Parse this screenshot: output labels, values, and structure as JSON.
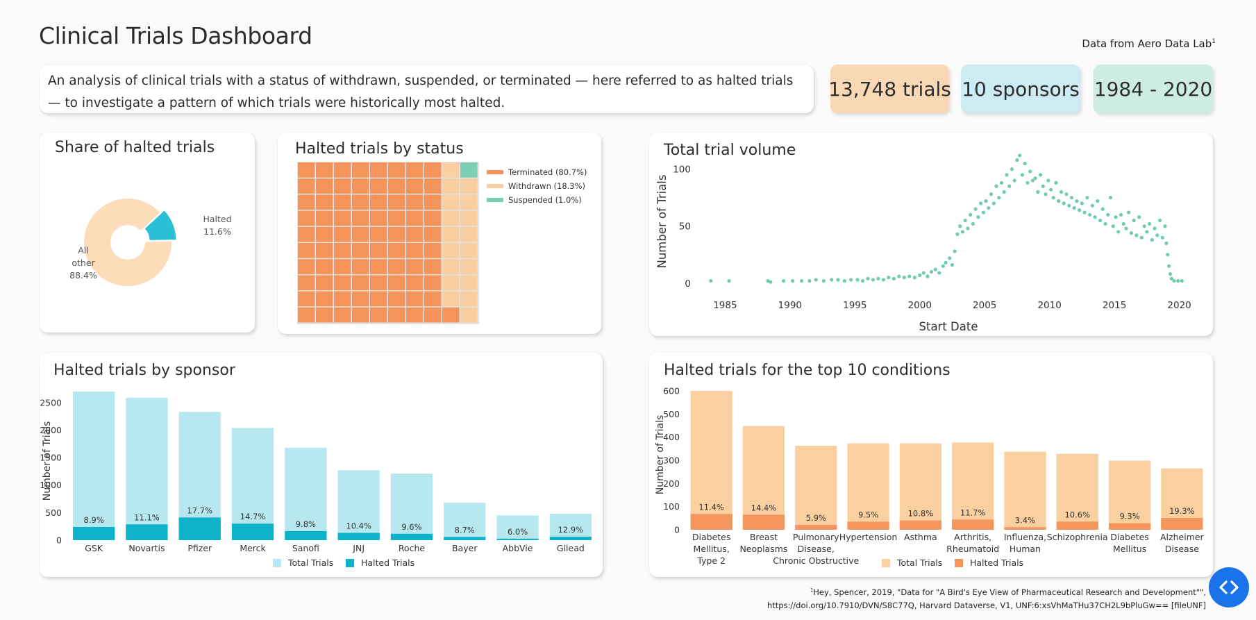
{
  "header": {
    "title": "Clinical Trials Dashboard",
    "source_text": "Data from Aero Data Lab",
    "source_mark": "1"
  },
  "description": "An analysis of clinical trials with a status of withdrawn, suspended, or terminated — here referred to as halted trials — to investigate a pattern of which trials were historically most halted.",
  "kpis": {
    "trials": "13,748 trials",
    "sponsors": "10 sponsors",
    "years": "1984 - 2020"
  },
  "colors": {
    "halted_cyan": "#2bbfd6",
    "other_peach": "#fcdcb9",
    "terminated": "#f4945a",
    "withdrawn": "#f9cfa0",
    "suspended": "#7ccfb2",
    "scatter": "#6fcdab",
    "total_light_blue": "#b7e8ef",
    "halted_blue": "#0fb3c9",
    "total_peach": "#fad0a0",
    "halted_orange": "#f4965d"
  },
  "icons": {
    "nav": "code-arrows-icon"
  },
  "footnote": {
    "mark": "1",
    "line1": "Hey, Spencer, 2019, \"Data for \"A Bird's Eye View of Pharmaceutical Research and Development\"\",",
    "line2": "https://doi.org/10.7910/DVN/S8C77Q, Harvard Dataverse, V1, UNF:6:xsVhMaTHu37CH2L9bPluGw== [fileUNF]"
  },
  "chart_data": [
    {
      "id": "share",
      "type": "pie",
      "title": "Share of halted trials",
      "slices": [
        {
          "name": "Halted",
          "value": 11.6,
          "label": "11.6%"
        },
        {
          "name": "All other",
          "value": 88.4,
          "label": "88.4%"
        }
      ]
    },
    {
      "id": "status",
      "type": "waffle",
      "title": "Halted trials by status",
      "grid": [
        10,
        10
      ],
      "categories": [
        {
          "name": "Terminated",
          "value": 80.7,
          "cells": 81,
          "legend": "Terminated (80.7%)"
        },
        {
          "name": "Withdrawn",
          "value": 18.3,
          "cells": 18,
          "legend": "Withdrawn (18.3%)"
        },
        {
          "name": "Suspended",
          "value": 1.0,
          "cells": 1,
          "legend": "Suspended (1.0%)"
        }
      ]
    },
    {
      "id": "volume",
      "type": "scatter",
      "title": "Total trial volume",
      "xlabel": "Start Date",
      "ylabel": "Number of Trials",
      "xlim": [
        1983,
        2021.2
      ],
      "ylim": [
        -8,
        115
      ],
      "xticks": [
        1985,
        1990,
        1995,
        2000,
        2005,
        2010,
        2015,
        2020
      ],
      "yticks": [
        0,
        50,
        100
      ],
      "points": [
        [
          1983.9,
          2
        ],
        [
          1985.3,
          2
        ],
        [
          1988.3,
          2
        ],
        [
          1988.5,
          1
        ],
        [
          1989.5,
          2
        ],
        [
          1990.2,
          2
        ],
        [
          1990.9,
          2
        ],
        [
          1991.5,
          2
        ],
        [
          1992.0,
          3
        ],
        [
          1992.6,
          2
        ],
        [
          1993.2,
          3
        ],
        [
          1993.7,
          3
        ],
        [
          1994.2,
          2
        ],
        [
          1994.7,
          3
        ],
        [
          1995.2,
          3
        ],
        [
          1995.6,
          2
        ],
        [
          1996.0,
          4
        ],
        [
          1996.4,
          3
        ],
        [
          1996.8,
          4
        ],
        [
          1997.2,
          3
        ],
        [
          1997.6,
          5
        ],
        [
          1998.0,
          4
        ],
        [
          1998.4,
          6
        ],
        [
          1998.8,
          5
        ],
        [
          1999.2,
          6
        ],
        [
          1999.6,
          5
        ],
        [
          2000.0,
          7
        ],
        [
          2000.3,
          9
        ],
        [
          2000.6,
          6
        ],
        [
          2000.9,
          10
        ],
        [
          2001.2,
          12
        ],
        [
          2001.5,
          9
        ],
        [
          2001.8,
          15
        ],
        [
          2002.0,
          18
        ],
        [
          2002.3,
          22
        ],
        [
          2002.5,
          16
        ],
        [
          2002.7,
          28
        ],
        [
          2002.9,
          43
        ],
        [
          2003.1,
          50
        ],
        [
          2003.3,
          45
        ],
        [
          2003.5,
          55
        ],
        [
          2003.7,
          48
        ],
        [
          2003.9,
          60
        ],
        [
          2004.1,
          52
        ],
        [
          2004.3,
          65
        ],
        [
          2004.5,
          58
        ],
        [
          2004.7,
          70
        ],
        [
          2004.9,
          62
        ],
        [
          2005.1,
          72
        ],
        [
          2005.3,
          66
        ],
        [
          2005.5,
          78
        ],
        [
          2005.7,
          70
        ],
        [
          2005.9,
          85
        ],
        [
          2006.1,
          75
        ],
        [
          2006.3,
          88
        ],
        [
          2006.5,
          80
        ],
        [
          2006.7,
          95
        ],
        [
          2006.9,
          85
        ],
        [
          2007.1,
          100
        ],
        [
          2007.3,
          90
        ],
        [
          2007.5,
          108
        ],
        [
          2007.7,
          112
        ],
        [
          2007.9,
          95
        ],
        [
          2008.1,
          105
        ],
        [
          2008.3,
          88
        ],
        [
          2008.5,
          98
        ],
        [
          2008.7,
          90
        ],
        [
          2008.9,
          92
        ],
        [
          2009.1,
          80
        ],
        [
          2009.3,
          95
        ],
        [
          2009.5,
          85
        ],
        [
          2009.7,
          78
        ],
        [
          2009.9,
          90
        ],
        [
          2010.1,
          82
        ],
        [
          2010.3,
          75
        ],
        [
          2010.5,
          88
        ],
        [
          2010.7,
          72
        ],
        [
          2010.9,
          80
        ],
        [
          2011.1,
          70
        ],
        [
          2011.3,
          78
        ],
        [
          2011.5,
          68
        ],
        [
          2011.7,
          75
        ],
        [
          2011.9,
          66
        ],
        [
          2012.1,
          72
        ],
        [
          2012.3,
          64
        ],
        [
          2012.5,
          70
        ],
        [
          2012.7,
          62
        ],
        [
          2012.9,
          75
        ],
        [
          2013.1,
          60
        ],
        [
          2013.3,
          68
        ],
        [
          2013.5,
          58
        ],
        [
          2013.7,
          72
        ],
        [
          2013.9,
          55
        ],
        [
          2014.1,
          65
        ],
        [
          2014.3,
          52
        ],
        [
          2014.5,
          60
        ],
        [
          2014.7,
          75
        ],
        [
          2014.9,
          50
        ],
        [
          2015.1,
          58
        ],
        [
          2015.3,
          45
        ],
        [
          2015.5,
          60
        ],
        [
          2015.7,
          52
        ],
        [
          2015.9,
          48
        ],
        [
          2016.1,
          62
        ],
        [
          2016.3,
          44
        ],
        [
          2016.5,
          55
        ],
        [
          2016.7,
          42
        ],
        [
          2016.9,
          58
        ],
        [
          2017.1,
          40
        ],
        [
          2017.3,
          50
        ],
        [
          2017.5,
          45
        ],
        [
          2017.7,
          52
        ],
        [
          2017.9,
          38
        ],
        [
          2018.1,
          48
        ],
        [
          2018.3,
          42
        ],
        [
          2018.5,
          55
        ],
        [
          2018.7,
          40
        ],
        [
          2018.9,
          50
        ],
        [
          2019.0,
          35
        ],
        [
          2019.1,
          25
        ],
        [
          2019.2,
          15
        ],
        [
          2019.3,
          8
        ],
        [
          2019.4,
          4
        ],
        [
          2019.6,
          2
        ],
        [
          2019.9,
          2
        ],
        [
          2020.2,
          2
        ]
      ]
    },
    {
      "id": "sponsor",
      "type": "bar",
      "title": "Halted trials by sponsor",
      "ylabel": "Number of Trials",
      "ylim": [
        0,
        2700
      ],
      "yticks": [
        0,
        500,
        1000,
        1500,
        2000,
        2500
      ],
      "categories": [
        "GSK",
        "Novartis",
        "Pfizer",
        "Merck",
        "Sanofi",
        "JNJ",
        "Roche",
        "Bayer",
        "AbbVie",
        "Gilead"
      ],
      "series": [
        {
          "name": "Total Trials",
          "values": [
            2700,
            2590,
            2330,
            2040,
            1680,
            1270,
            1210,
            680,
            450,
            480
          ]
        },
        {
          "name": "Halted Trials",
          "values": [
            240,
            287,
            412,
            300,
            165,
            132,
            116,
            59,
            27,
            62
          ]
        }
      ],
      "data_labels": [
        "8.9%",
        "11.1%",
        "17.7%",
        "14.7%",
        "9.8%",
        "10.4%",
        "9.6%",
        "8.7%",
        "6.0%",
        "12.9%"
      ],
      "legend": [
        "Total Trials",
        "Halted Trials"
      ]
    },
    {
      "id": "conditions",
      "type": "bar",
      "title": "Halted trials for the top 10 conditions",
      "ylabel": "Number of Trials",
      "ylim": [
        0,
        600
      ],
      "yticks": [
        0,
        100,
        200,
        300,
        400,
        500,
        600
      ],
      "categories": [
        [
          "Diabetes",
          "Mellitus,",
          "Type 2"
        ],
        [
          "Breast",
          "Neoplasms"
        ],
        [
          "Pulmonary",
          "Disease,",
          "Chronic Obstructive"
        ],
        [
          "Hypertension"
        ],
        [
          "Asthma"
        ],
        [
          "Arthritis,",
          "Rheumatoid"
        ],
        [
          "Influenza,",
          "Human"
        ],
        [
          "Schizophrenia"
        ],
        [
          "Diabetes",
          "Mellitus"
        ],
        [
          "Alzheimer",
          "Disease"
        ]
      ],
      "series": [
        {
          "name": "Total Trials",
          "values": [
            600,
            448,
            363,
            373,
            373,
            377,
            337,
            328,
            299,
            265
          ]
        },
        {
          "name": "Halted Trials",
          "values": [
            68,
            65,
            21,
            35,
            40,
            44,
            11,
            35,
            28,
            51
          ]
        }
      ],
      "data_labels": [
        "11.4%",
        "14.4%",
        "5.9%",
        "9.5%",
        "10.8%",
        "11.7%",
        "3.4%",
        "10.6%",
        "9.3%",
        "19.3%"
      ],
      "legend": [
        "Total Trials",
        "Halted Trials"
      ]
    }
  ]
}
